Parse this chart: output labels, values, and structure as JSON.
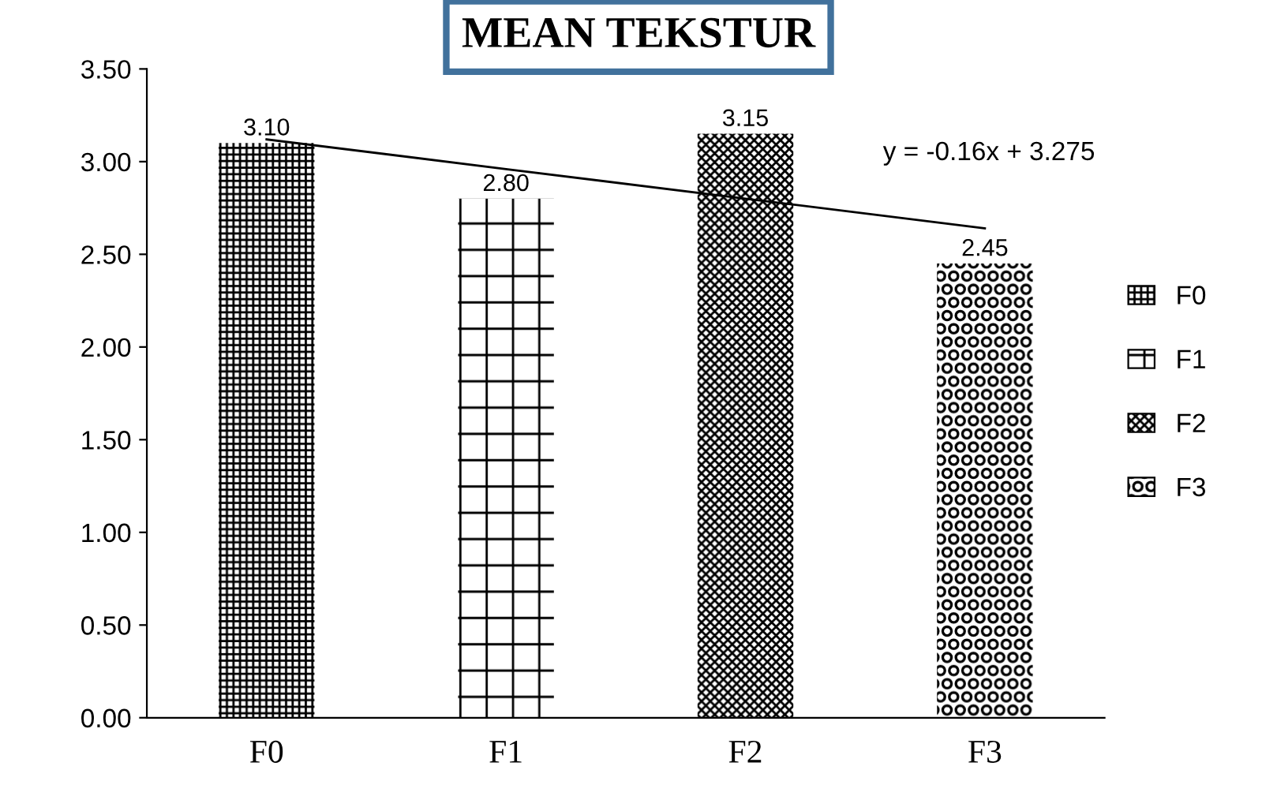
{
  "chart_data": {
    "type": "bar",
    "title": "MEAN TEKSTUR",
    "categories": [
      "F0",
      "F1",
      "F2",
      "F3"
    ],
    "series": [
      {
        "name": "F0",
        "color": "#000000",
        "values": [
          3.1,
          null,
          null,
          null
        ],
        "value_labels": [
          "3.10",
          null,
          null,
          null
        ]
      },
      {
        "name": "F1",
        "color": "#000000",
        "values": [
          null,
          2.8,
          null,
          null
        ],
        "value_labels": [
          null,
          "2.80",
          null,
          null
        ]
      },
      {
        "name": "F2",
        "color": "#000000",
        "values": [
          null,
          null,
          3.15,
          null
        ],
        "value_labels": [
          null,
          null,
          "3.15",
          null
        ]
      },
      {
        "name": "F3",
        "color": "#000000",
        "values": [
          null,
          null,
          null,
          2.45
        ],
        "value_labels": [
          null,
          null,
          null,
          "2.45"
        ]
      },
      {
        "type": "line",
        "color": "#000000",
        "values": [
          3.12,
          2.96,
          2.8,
          2.64
        ]
      }
    ],
    "annotations": [
      "y = -0.16x + 3.275"
    ],
    "ylim": [
      0,
      3.5
    ],
    "yticks": [
      {
        "value": 0,
        "label": "0.00"
      },
      {
        "value": 0.5,
        "label": "0.50"
      },
      {
        "value": 1,
        "label": "1.00"
      },
      {
        "value": 1.5,
        "label": "1.50"
      },
      {
        "value": 2,
        "label": "2.00"
      },
      {
        "value": 2.5,
        "label": "2.50"
      },
      {
        "value": 3,
        "label": "3.00"
      },
      {
        "value": 3.5,
        "label": "3.50"
      }
    ],
    "grid": false,
    "legend": "right"
  }
}
